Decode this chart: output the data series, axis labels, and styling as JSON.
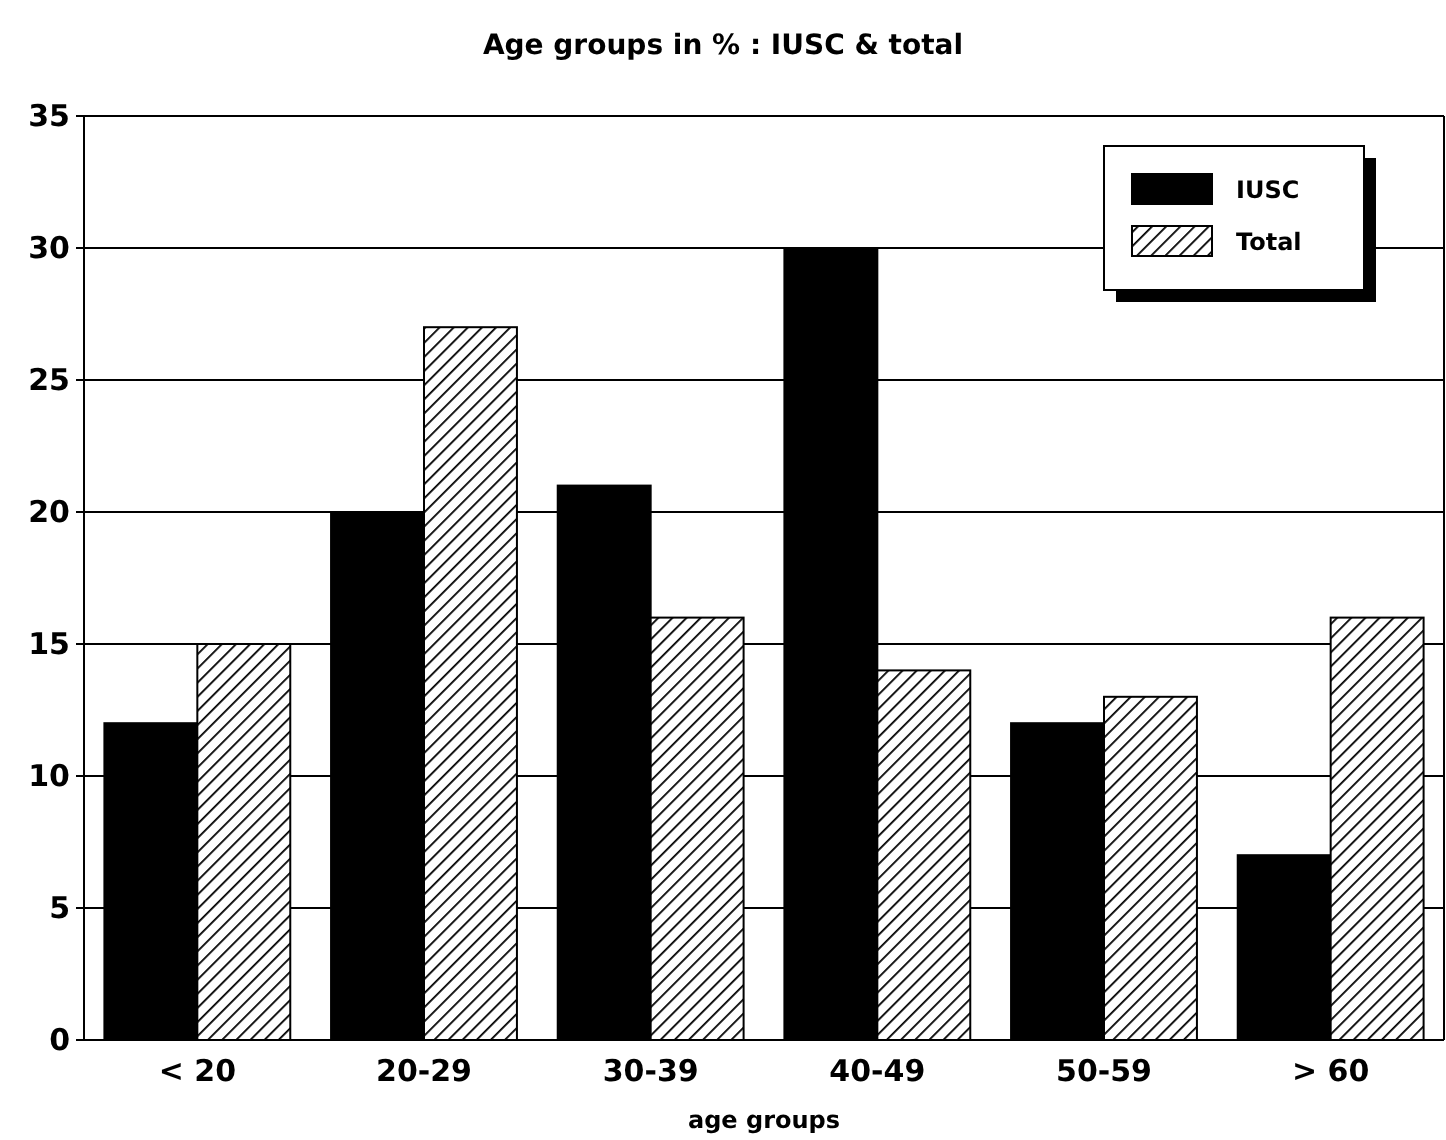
{
  "chart_data": {
    "type": "bar",
    "title": "Age groups in % : IUSC & total",
    "xlabel": "age groups",
    "categories": [
      "< 20",
      "20-29",
      "30-39",
      "40-49",
      "50-59",
      "> 60"
    ],
    "series": [
      {
        "name": "IUSC",
        "color": "#000000",
        "values": [
          12,
          20,
          21,
          30,
          12,
          7
        ]
      },
      {
        "name": "Total",
        "color": "#000000",
        "values": [
          15,
          27,
          16,
          14,
          13,
          16
        ]
      }
    ],
    "ylim": [
      0,
      35
    ],
    "yticks": [
      0,
      5,
      10,
      15,
      20,
      25,
      30,
      35
    ],
    "grid": "y",
    "legend": "top right"
  }
}
